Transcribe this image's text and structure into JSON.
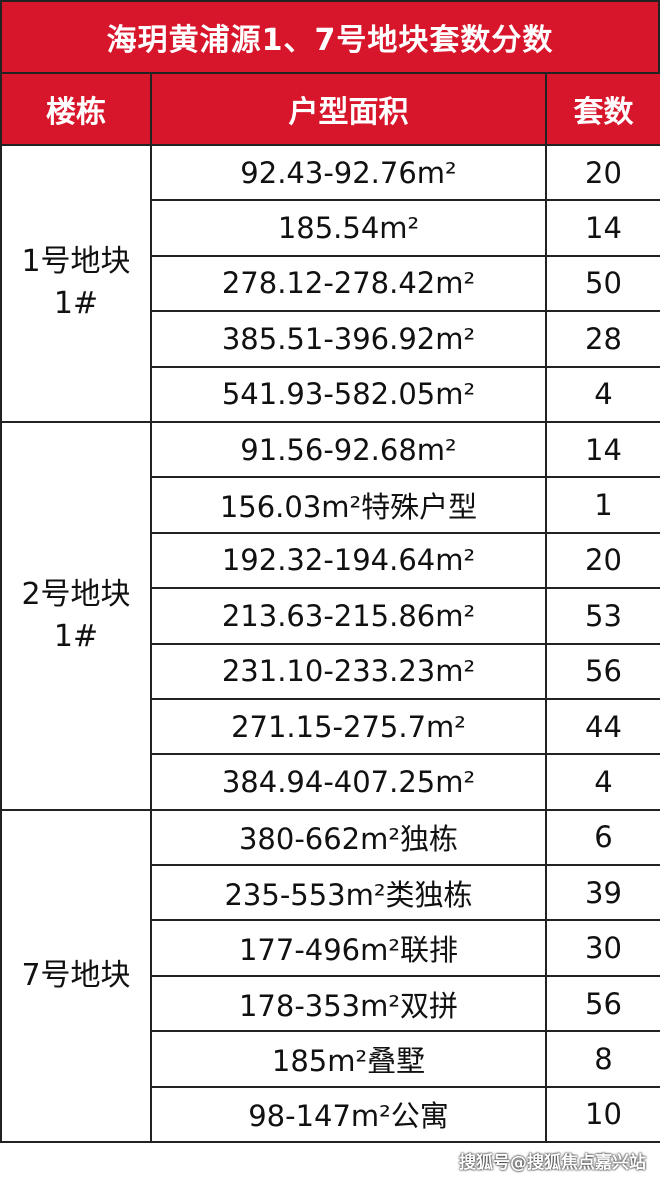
{
  "title": "海玥黄浦源1、7号地块套数分数",
  "headers": {
    "building": "楼栋",
    "area": "户型面积",
    "count": "套数"
  },
  "groups": [
    {
      "building": "1号地块\n1#",
      "rows": [
        {
          "area": "92.43-92.76m²",
          "count": "20"
        },
        {
          "area": "185.54m²",
          "count": "14"
        },
        {
          "area": "278.12-278.42m²",
          "count": "50"
        },
        {
          "area": "385.51-396.92m²",
          "count": "28"
        },
        {
          "area": "541.93-582.05m²",
          "count": "4"
        }
      ]
    },
    {
      "building": "2号地块\n1#",
      "rows": [
        {
          "area": "91.56-92.68m²",
          "count": "14"
        },
        {
          "area": "156.03m²特殊户型",
          "count": "1"
        },
        {
          "area": "192.32-194.64m²",
          "count": "20"
        },
        {
          "area": "213.63-215.86m²",
          "count": "53"
        },
        {
          "area": "231.10-233.23m²",
          "count": "56"
        },
        {
          "area": "271.15-275.7m²",
          "count": "44"
        },
        {
          "area": "384.94-407.25m²",
          "count": "4"
        }
      ]
    },
    {
      "building": "7号地块",
      "rows": [
        {
          "area": "380-662m²独栋",
          "count": "6"
        },
        {
          "area": "235-553m²类独栋",
          "count": "39"
        },
        {
          "area": "177-496m²联排",
          "count": "30"
        },
        {
          "area": "178-353m²双拼",
          "count": "56"
        },
        {
          "area": "185m²叠墅",
          "count": "8"
        },
        {
          "area": "98-147m²公寓",
          "count": "10"
        }
      ]
    }
  ],
  "watermark": "搜狐号@搜狐焦点嘉兴站",
  "colors": {
    "header_bg": "#d8162b",
    "header_text": "#ffffff",
    "border": "#222222"
  }
}
